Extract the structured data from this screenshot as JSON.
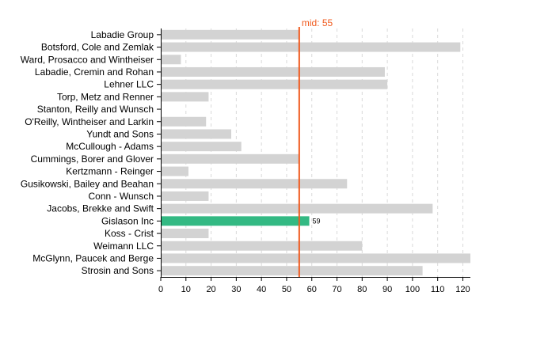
{
  "chart_data": {
    "type": "bar",
    "orientation": "horizontal",
    "categories": [
      "Labadie Group",
      "Botsford, Cole and Zemlak",
      "Ward, Prosacco and Wintheiser",
      "Labadie, Cremin and Rohan",
      "Lehner LLC",
      "Torp, Metz and Renner",
      "Stanton, Reilly and Wunsch",
      "O'Reilly, Wintheiser and Larkin",
      "Yundt and Sons",
      "McCullough - Adams",
      "Cummings, Borer and Glover",
      "Kertzmann - Reinger",
      "Gusikowski, Bailey and Beahan",
      "Conn - Wunsch",
      "Jacobs, Brekke and Swift",
      "Gislason Inc",
      "Koss - Crist",
      "Weimann LLC",
      "McGlynn, Paucek and Berge",
      "Strosin and Sons"
    ],
    "values": [
      55,
      119,
      8,
      89,
      90,
      19,
      0,
      18,
      28,
      32,
      55,
      11,
      74,
      19,
      108,
      59,
      19,
      80,
      123,
      104
    ],
    "highlight": {
      "category": "Gislason Inc",
      "value_label": "59"
    },
    "reference_line": {
      "value": 55,
      "label": "mid: 55"
    },
    "xlim": [
      0,
      123
    ],
    "x_ticks": [
      "0",
      "10",
      "20",
      "30",
      "40",
      "50",
      "60",
      "70",
      "80",
      "90",
      "100",
      "110",
      "120"
    ],
    "grid": "vertical dashed",
    "colors": {
      "bar": "#d3d3d3",
      "highlight": "#33b983",
      "reference": "#f05a1e"
    }
  }
}
